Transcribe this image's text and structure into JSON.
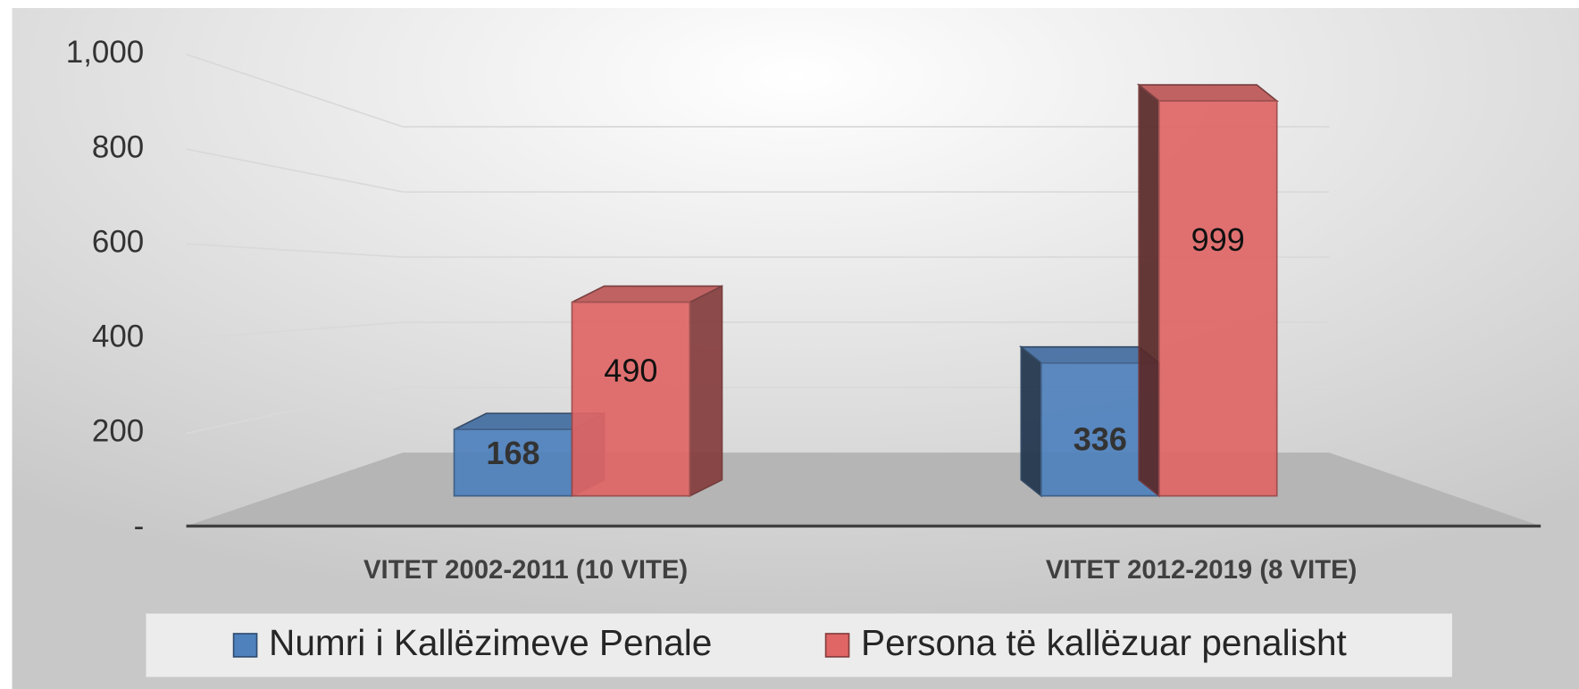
{
  "chart_data": {
    "type": "bar3d",
    "categories": [
      "VITET  2002-2011 (10 VITE)",
      "VITET 2012-2019 (8 VITE)"
    ],
    "series": [
      {
        "name": "Numri i Kallëzimeve Penale",
        "color": "#4f81bd",
        "values": [
          168,
          336
        ]
      },
      {
        "name": "Persona të kallëzuar penalisht",
        "color": "#e06666",
        "values": [
          490,
          999
        ]
      }
    ],
    "ylim": [
      0,
      1000
    ],
    "yticks": [
      {
        "value": 0,
        "label": "-"
      },
      200,
      400,
      600,
      800,
      {
        "value": 1000,
        "label": "1,000"
      }
    ],
    "grid": true,
    "legend": "bottom"
  }
}
